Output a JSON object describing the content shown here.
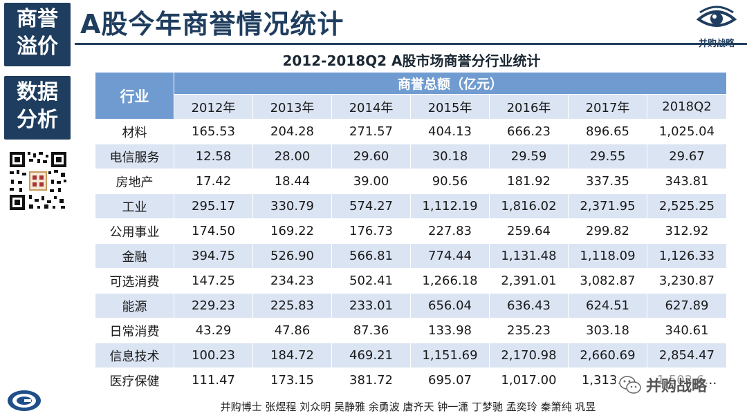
{
  "sidebar": {
    "block1": [
      "商誉",
      "溢价"
    ],
    "block2": [
      "数据",
      "分析"
    ]
  },
  "header": {
    "title": "A股今年商誉情况统计",
    "brand": "并购战略"
  },
  "table": {
    "title": "2012-2018Q2 A股市场商誉分行业统计",
    "industry_header": "行业",
    "group_header": "商誉总额（亿元）",
    "years": [
      "2012年",
      "2013年",
      "2014年",
      "2015年",
      "2016年",
      "2017年",
      "2018Q2"
    ],
    "rows": [
      {
        "industry": "材料",
        "values": [
          "165.53",
          "204.28",
          "271.57",
          "404.13",
          "666.23",
          "896.65",
          "1,025.04"
        ]
      },
      {
        "industry": "电信服务",
        "values": [
          "12.58",
          "28.00",
          "29.60",
          "30.18",
          "29.59",
          "29.55",
          "29.67"
        ]
      },
      {
        "industry": "房地产",
        "values": [
          "17.42",
          "18.44",
          "39.00",
          "90.56",
          "181.92",
          "337.35",
          "343.81"
        ]
      },
      {
        "industry": "工业",
        "values": [
          "295.17",
          "330.79",
          "574.27",
          "1,112.19",
          "1,816.02",
          "2,371.95",
          "2,525.25"
        ]
      },
      {
        "industry": "公用事业",
        "values": [
          "174.50",
          "169.22",
          "176.73",
          "227.83",
          "259.64",
          "299.82",
          "312.92"
        ]
      },
      {
        "industry": "金融",
        "values": [
          "394.75",
          "526.90",
          "566.81",
          "774.44",
          "1,131.48",
          "1,118.09",
          "1,126.33"
        ]
      },
      {
        "industry": "可选消费",
        "values": [
          "147.25",
          "234.23",
          "502.41",
          "1,266.18",
          "2,391.01",
          "3,082.87",
          "3,230.87"
        ]
      },
      {
        "industry": "能源",
        "values": [
          "229.23",
          "225.83",
          "233.01",
          "656.04",
          "636.43",
          "624.51",
          "627.89"
        ]
      },
      {
        "industry": "日常消费",
        "values": [
          "43.29",
          "47.86",
          "87.36",
          "133.98",
          "235.23",
          "303.18",
          "340.61"
        ]
      },
      {
        "industry": "信息技术",
        "values": [
          "100.23",
          "184.72",
          "469.21",
          "1,151.69",
          "2,170.98",
          "2,660.69",
          "2,854.47"
        ]
      },
      {
        "industry": "医疗保健",
        "values": [
          "111.47",
          "173.15",
          "381.72",
          "695.07",
          "1,017.00",
          "1,313.…",
          "1,502.6…"
        ]
      }
    ]
  },
  "footer": {
    "authors": "并购博士 张煜程 刘众明 吴静雅 余勇波 唐齐天 钟一潇 丁梦驰 孟奕玲 秦箫纯 巩昱"
  },
  "watermark": {
    "text": "并购战略"
  },
  "colors": {
    "navy": "#1f3d5e",
    "header_blue": "#6f9bd0",
    "stripe": "#dbe4f3"
  }
}
